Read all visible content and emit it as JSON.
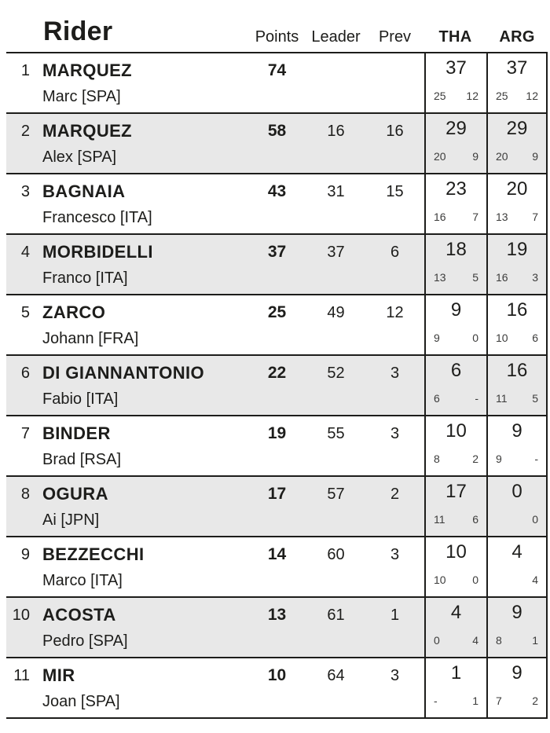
{
  "title": "Rider",
  "columns": {
    "points": "Points",
    "leader": "Leader",
    "prev": "Prev",
    "races": [
      "THA",
      "ARG"
    ]
  },
  "rows": [
    {
      "pos": "1",
      "surname": "MARQUEZ",
      "name": "Marc [SPA]",
      "points": "74",
      "leader": "",
      "prev": "",
      "races": [
        {
          "total": "37",
          "gp": "25",
          "sprint": "12"
        },
        {
          "total": "37",
          "gp": "25",
          "sprint": "12"
        }
      ]
    },
    {
      "pos": "2",
      "surname": "MARQUEZ",
      "name": "Alex [SPA]",
      "points": "58",
      "leader": "16",
      "prev": "16",
      "races": [
        {
          "total": "29",
          "gp": "20",
          "sprint": "9"
        },
        {
          "total": "29",
          "gp": "20",
          "sprint": "9"
        }
      ]
    },
    {
      "pos": "3",
      "surname": "BAGNAIA",
      "name": "Francesco [ITA]",
      "points": "43",
      "leader": "31",
      "prev": "15",
      "races": [
        {
          "total": "23",
          "gp": "16",
          "sprint": "7"
        },
        {
          "total": "20",
          "gp": "13",
          "sprint": "7"
        }
      ]
    },
    {
      "pos": "4",
      "surname": "MORBIDELLI",
      "name": "Franco [ITA]",
      "points": "37",
      "leader": "37",
      "prev": "6",
      "races": [
        {
          "total": "18",
          "gp": "13",
          "sprint": "5"
        },
        {
          "total": "19",
          "gp": "16",
          "sprint": "3"
        }
      ]
    },
    {
      "pos": "5",
      "surname": "ZARCO",
      "name": "Johann [FRA]",
      "points": "25",
      "leader": "49",
      "prev": "12",
      "races": [
        {
          "total": "9",
          "gp": "9",
          "sprint": "0"
        },
        {
          "total": "16",
          "gp": "10",
          "sprint": "6"
        }
      ]
    },
    {
      "pos": "6",
      "surname": "DI GIANNANTONIO",
      "name": "Fabio [ITA]",
      "points": "22",
      "leader": "52",
      "prev": "3",
      "races": [
        {
          "total": "6",
          "gp": "6",
          "sprint": "-"
        },
        {
          "total": "16",
          "gp": "11",
          "sprint": "5"
        }
      ]
    },
    {
      "pos": "7",
      "surname": "BINDER",
      "name": "Brad [RSA]",
      "points": "19",
      "leader": "55",
      "prev": "3",
      "races": [
        {
          "total": "10",
          "gp": "8",
          "sprint": "2"
        },
        {
          "total": "9",
          "gp": "9",
          "sprint": "-"
        }
      ]
    },
    {
      "pos": "8",
      "surname": "OGURA",
      "name": "Ai [JPN]",
      "points": "17",
      "leader": "57",
      "prev": "2",
      "races": [
        {
          "total": "17",
          "gp": "11",
          "sprint": "6"
        },
        {
          "total": "0",
          "gp": "",
          "sprint": "0"
        }
      ]
    },
    {
      "pos": "9",
      "surname": "BEZZECCHI",
      "name": "Marco [ITA]",
      "points": "14",
      "leader": "60",
      "prev": "3",
      "races": [
        {
          "total": "10",
          "gp": "10",
          "sprint": "0"
        },
        {
          "total": "4",
          "gp": "",
          "sprint": "4"
        }
      ]
    },
    {
      "pos": "10",
      "surname": "ACOSTA",
      "name": "Pedro [SPA]",
      "points": "13",
      "leader": "61",
      "prev": "1",
      "races": [
        {
          "total": "4",
          "gp": "0",
          "sprint": "4"
        },
        {
          "total": "9",
          "gp": "8",
          "sprint": "1"
        }
      ]
    },
    {
      "pos": "11",
      "surname": "MIR",
      "name": "Joan [SPA]",
      "points": "10",
      "leader": "64",
      "prev": "3",
      "races": [
        {
          "total": "1",
          "gp": "-",
          "sprint": "1"
        },
        {
          "total": "9",
          "gp": "7",
          "sprint": "2"
        }
      ]
    }
  ],
  "colors": {
    "background": "#ffffff",
    "row_alt_background": "#e8e8e8",
    "border": "#1d1d1b",
    "text": "#1d1d1b",
    "sub_text": "#3c3c3b"
  }
}
